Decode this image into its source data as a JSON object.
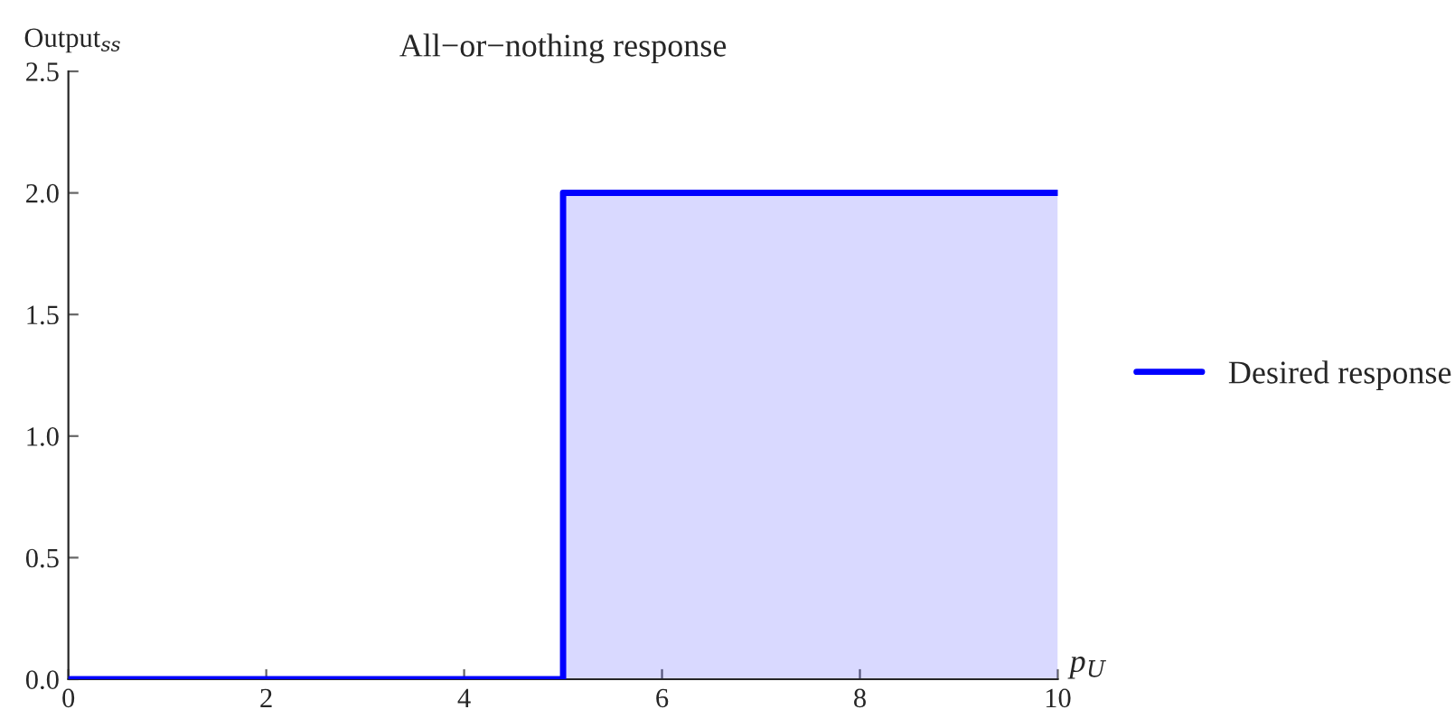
{
  "chart_data": {
    "type": "step",
    "title": "All−or−nothing response",
    "xlabel": "p$_{U}$",
    "ylabel": "Output$_{ss}$",
    "x": [
      0,
      5,
      10
    ],
    "series": [
      {
        "name": "Desired response",
        "color": "#0000ff",
        "values": [
          0,
          2,
          2
        ]
      }
    ],
    "xlim": [
      0,
      10
    ],
    "ylim": [
      0,
      2.5
    ],
    "xticks": [
      0,
      2,
      4,
      6,
      8,
      10
    ],
    "yticks": [
      {
        "value": 0,
        "label": "0.0"
      },
      {
        "value": 0.5,
        "label": "0.5"
      },
      {
        "value": 1,
        "label": "1.0"
      },
      {
        "value": 1.5,
        "label": "1.5"
      },
      {
        "value": 2,
        "label": "2.0"
      },
      {
        "value": 2.5,
        "label": "2.5"
      }
    ],
    "grid": false,
    "legend": "right"
  }
}
